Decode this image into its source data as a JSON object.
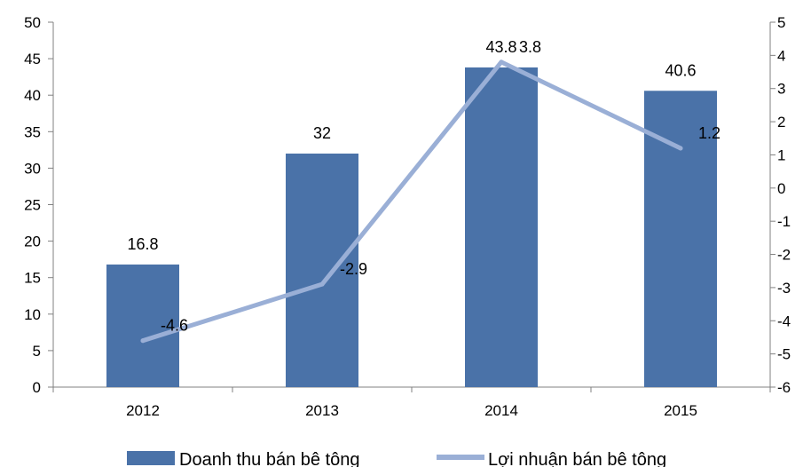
{
  "chart_data": {
    "type": "bar",
    "categories": [
      "2012",
      "2013",
      "2014",
      "2015"
    ],
    "series": [
      {
        "name": "Doanh thu bán bê tông",
        "type": "bar",
        "axis": "left",
        "color": "#4a72a8",
        "values": [
          16.8,
          32,
          43.8,
          40.6
        ],
        "labels": [
          "16.8",
          "32",
          "43.8",
          "40.6"
        ]
      },
      {
        "name": "Lợi nhuận bán bê tông",
        "type": "line",
        "axis": "right",
        "color": "#9aafd6",
        "values": [
          -4.6,
          -2.9,
          3.8,
          1.2
        ],
        "labels": [
          "-4.6",
          "-2.9",
          "3.8",
          "1.2"
        ]
      }
    ],
    "y_left": {
      "range": [
        0,
        50
      ],
      "ticks": [
        "0",
        "5",
        "10",
        "15",
        "20",
        "25",
        "30",
        "35",
        "40",
        "45",
        "50"
      ]
    },
    "y_right": {
      "range": [
        -6,
        5
      ],
      "ticks": [
        "-6",
        "-5",
        "-4",
        "-3",
        "-2",
        "-1",
        "0",
        "1",
        "2",
        "3",
        "4",
        "5"
      ]
    },
    "grid": false,
    "legend_position": "bottom"
  }
}
